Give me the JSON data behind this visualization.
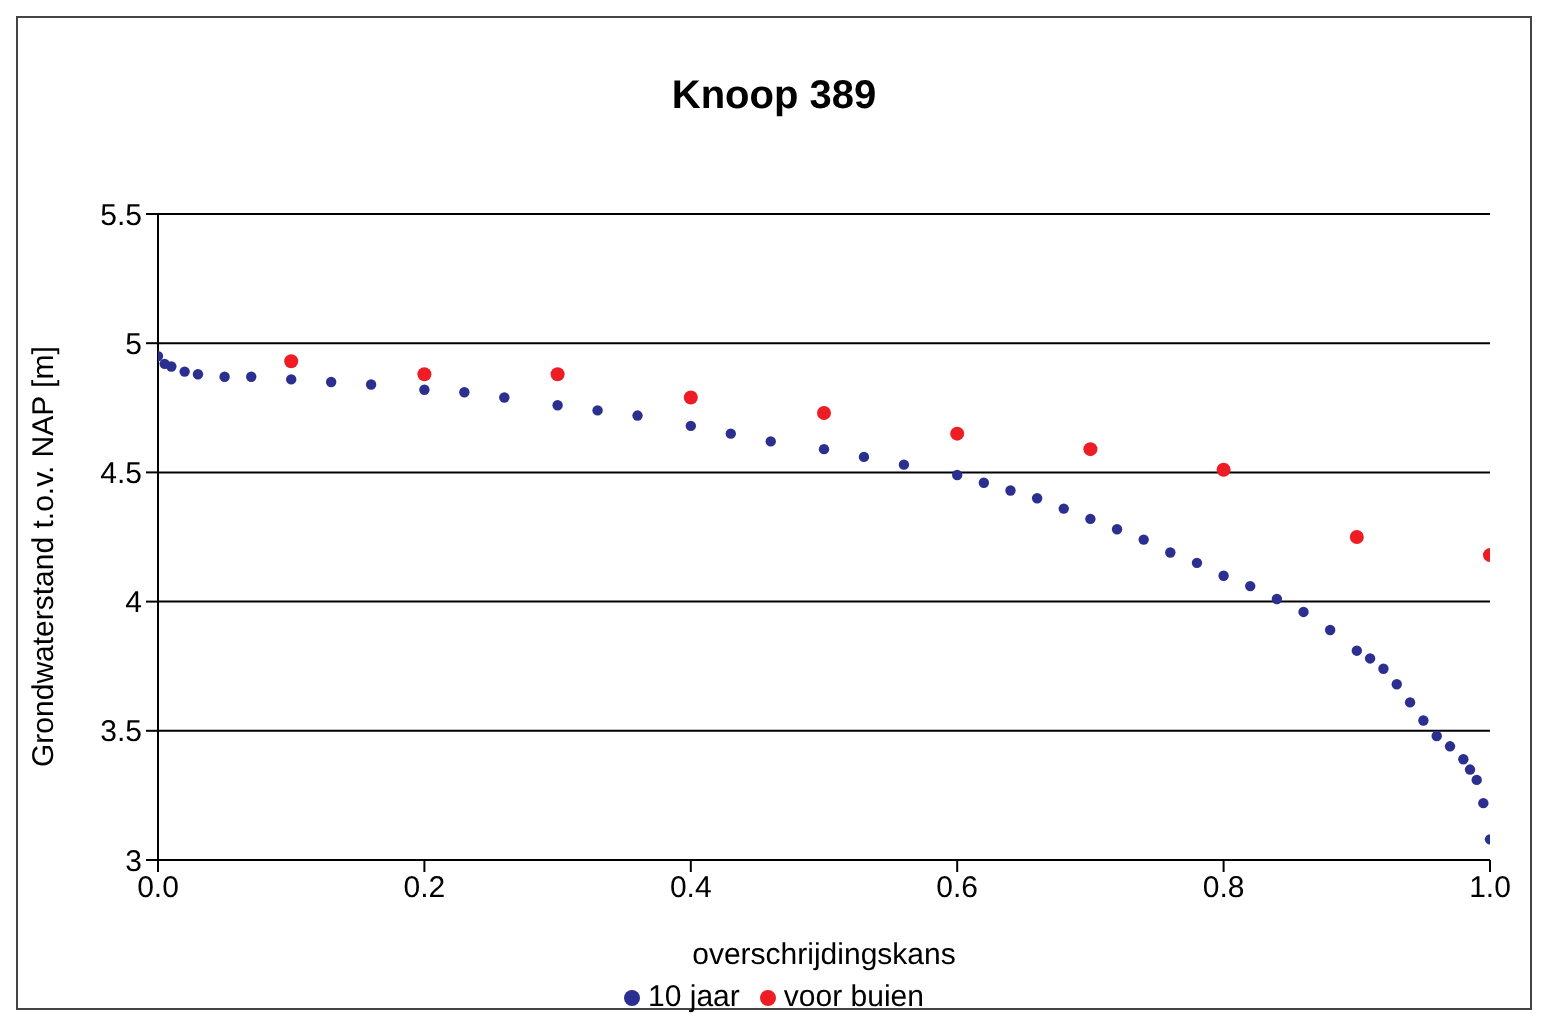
{
  "chart_data": {
    "type": "scatter",
    "title": "Knoop 389",
    "xlabel": "overschrijdingskans",
    "ylabel": "Grondwaterstand t.o.v. NAP [m]",
    "xlim": [
      0,
      1
    ],
    "xticks": [
      {
        "value": 0,
        "label": "0.0"
      },
      {
        "value": 0.2,
        "label": "0.2"
      },
      {
        "value": 0.4,
        "label": "0.4"
      },
      {
        "value": 0.6,
        "label": "0.6"
      },
      {
        "value": 0.8,
        "label": "0.8"
      },
      {
        "value": 1,
        "label": "1.0"
      }
    ],
    "ylim": [
      3,
      5.5
    ],
    "yticks": [
      3,
      3.5,
      4,
      4.5,
      5,
      5.5
    ],
    "grid": "y",
    "legend": "bottom",
    "marker": "circle",
    "series": [
      {
        "name": "10 jaar",
        "color": "#2b2f8f",
        "x": [
          0,
          0.005,
          0.01,
          0.02,
          0.03,
          0.05,
          0.07,
          0.1,
          0.13,
          0.16,
          0.2,
          0.23,
          0.26,
          0.3,
          0.33,
          0.36,
          0.4,
          0.43,
          0.46,
          0.5,
          0.53,
          0.56,
          0.6,
          0.62,
          0.64,
          0.66,
          0.68,
          0.7,
          0.72,
          0.74,
          0.76,
          0.78,
          0.8,
          0.82,
          0.84,
          0.86,
          0.88,
          0.9,
          0.91,
          0.92,
          0.93,
          0.94,
          0.95,
          0.96,
          0.97,
          0.98,
          0.985,
          0.99,
          0.995,
          1
        ],
        "values": [
          4.95,
          4.92,
          4.91,
          4.89,
          4.88,
          4.87,
          4.87,
          4.86,
          4.85,
          4.84,
          4.82,
          4.81,
          4.79,
          4.76,
          4.74,
          4.72,
          4.68,
          4.65,
          4.62,
          4.59,
          4.56,
          4.53,
          4.49,
          4.46,
          4.43,
          4.4,
          4.36,
          4.32,
          4.28,
          4.24,
          4.19,
          4.15,
          4.1,
          4.06,
          4.01,
          3.96,
          3.89,
          3.81,
          3.78,
          3.74,
          3.68,
          3.61,
          3.54,
          3.48,
          3.44,
          3.39,
          3.35,
          3.31,
          3.22,
          3.08
        ]
      },
      {
        "name": "voor buien",
        "color": "#ee1c25",
        "x": [
          0.1,
          0.2,
          0.3,
          0.4,
          0.5,
          0.6,
          0.7,
          0.8,
          0.9,
          1
        ],
        "values": [
          4.93,
          4.88,
          4.88,
          4.79,
          4.73,
          4.65,
          4.59,
          4.51,
          4.25,
          4.18
        ]
      }
    ]
  }
}
